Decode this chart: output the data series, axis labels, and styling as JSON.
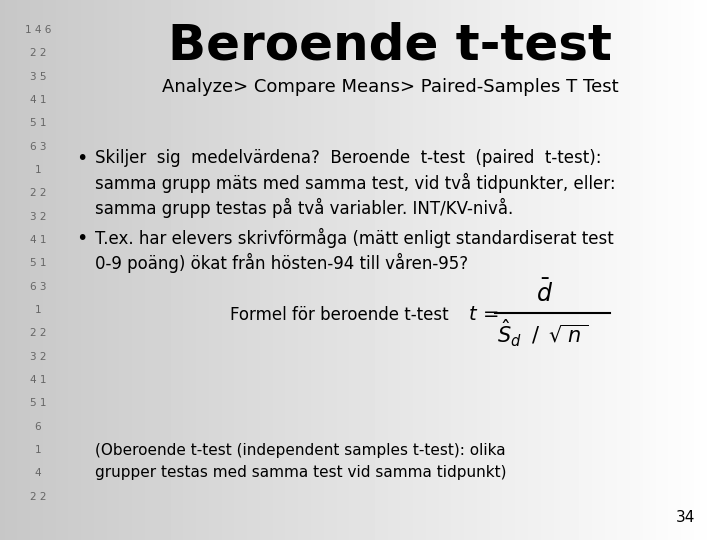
{
  "title": "Beroende t-test",
  "subtitle": "Analyze> Compare Means> Paired-Samples T Test",
  "bullet1_line1": "Skiljer  sig  medelvärdena?  Beroende  t-test  (paired  t-test):",
  "bullet1_line2": "samma grupp mäts med samma test, vid två tidpunkter, eller:",
  "bullet1_line3": "samma grupp testas på två variabler. INT/KV-nivå.",
  "bullet2_line1": "T.ex. har elevers skrivförmåga (mätt enligt standardiserat test",
  "bullet2_line2": "0-9 poäng) ökat från hösten-94 till våren-95?",
  "formula_label": "Formel för beroende t-test",
  "bottom_text_line1": "(Oberoende t-test (independent samples t-test): olika",
  "bottom_text_line2": "grupper testas med samma test vid samma tidpunkt)",
  "page_number": "34",
  "text_color": "#000000",
  "title_fontsize": 36,
  "subtitle_fontsize": 13,
  "body_fontsize": 12,
  "small_fontsize": 11,
  "left_numbers": [
    "1 4 6",
    "2 2",
    "3 5",
    "4 1",
    "5 1",
    "6 3",
    "1",
    "2 2",
    "3 2",
    "4 1",
    "5 1",
    "6 3",
    "1",
    "2 2",
    "3 2",
    "4 1",
    "5 1",
    "6",
    "1",
    "4",
    "2 2"
  ]
}
